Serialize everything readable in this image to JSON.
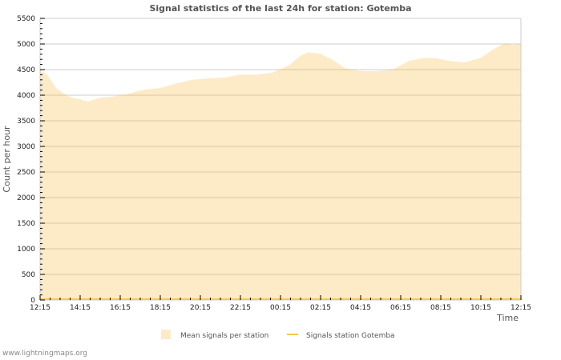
{
  "chart_data": {
    "type": "area",
    "title": "Signal statistics of the last 24h for station: Gotemba",
    "xlabel": "Time",
    "ylabel": "Count per hour",
    "ylim": [
      0,
      5500
    ],
    "y_ticks": [
      0,
      500,
      1000,
      1500,
      2000,
      2500,
      3000,
      3500,
      4000,
      4500,
      5000,
      5500
    ],
    "x_tick_labels": [
      "12:15",
      "14:15",
      "16:15",
      "18:15",
      "20:15",
      "22:15",
      "00:15",
      "02:15",
      "04:15",
      "06:15",
      "08:15",
      "10:15",
      "12:15"
    ],
    "grid": true,
    "legend_position": "bottom",
    "series": [
      {
        "name": "Mean signals per station",
        "kind": "area",
        "color": "#fdebc8",
        "x_hours": [
          0,
          0.4,
          0.8,
          1.2,
          1.6,
          2.0,
          2.4,
          2.6,
          3.0,
          3.6,
          4.4,
          5.2,
          6.0,
          6.8,
          7.6,
          8.4,
          9.2,
          10.0,
          10.8,
          11.6,
          12.4,
          13.0,
          13.4,
          14.0,
          14.6,
          15.2,
          16.0,
          16.8,
          17.6,
          18.4,
          19.2,
          19.8,
          20.4,
          21.2,
          22.0,
          22.6,
          23.2,
          23.6,
          24.0
        ],
        "values": [
          4500,
          4375,
          4140,
          4030,
          3950,
          3920,
          3875,
          3900,
          3950,
          3970,
          4030,
          4110,
          4140,
          4230,
          4300,
          4330,
          4345,
          4400,
          4400,
          4440,
          4580,
          4770,
          4840,
          4810,
          4690,
          4530,
          4470,
          4470,
          4500,
          4670,
          4730,
          4720,
          4670,
          4640,
          4730,
          4890,
          5015,
          4980,
          5000
        ]
      },
      {
        "name": "Signals station Gotemba",
        "kind": "line",
        "color": "#f5c842",
        "x_hours": [
          0,
          24
        ],
        "values": [
          0,
          0
        ]
      }
    ]
  },
  "legend": {
    "items": [
      {
        "label": "Mean signals per station",
        "color": "#fdebc8"
      },
      {
        "label": "Signals station Gotemba",
        "color": "#f5c842"
      }
    ]
  },
  "credit": "www.lightningmaps.org"
}
